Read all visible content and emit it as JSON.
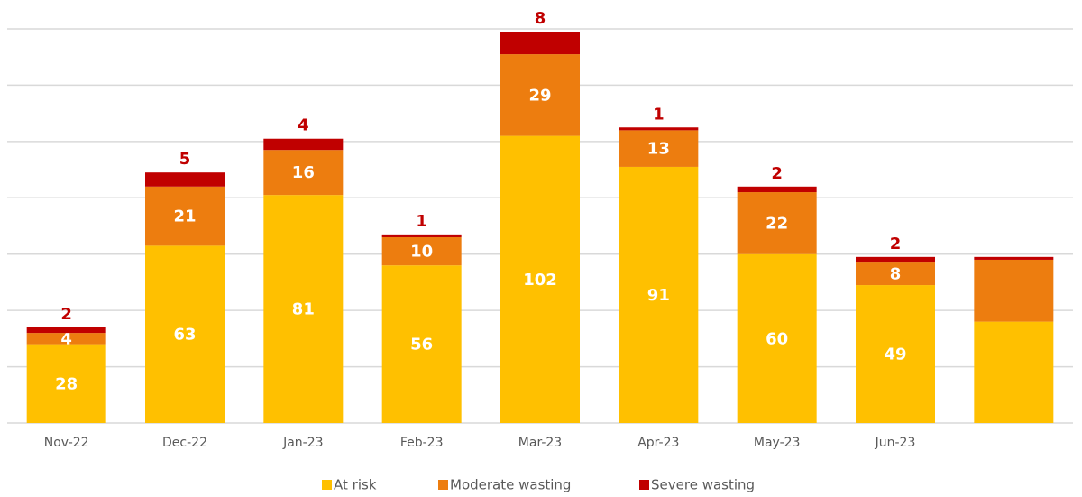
{
  "chart_data": {
    "type": "stacked_bar",
    "categories": [
      "Nov-22",
      "Dec-22",
      "Jan-23",
      "Feb-23",
      "Mar-23",
      "Apr-23",
      "May-23",
      "Jun-23",
      null
    ],
    "series": [
      {
        "name": "At risk",
        "color": "#FFC000",
        "values": [
          28,
          63,
          81,
          56,
          102,
          91,
          60,
          49,
          36
        ]
      },
      {
        "name": "Moderate wasting",
        "color": "#ED7D0F",
        "values": [
          4,
          21,
          16,
          10,
          29,
          13,
          22,
          8,
          22
        ]
      },
      {
        "name": "Severe wasting",
        "color": "#C00000",
        "values": [
          2,
          5,
          4,
          1,
          8,
          1,
          2,
          2,
          1
        ]
      }
    ],
    "ylim": [
      0,
      140
    ],
    "yticks": [
      0,
      20,
      40,
      60,
      80,
      100,
      120,
      140
    ],
    "grid": true,
    "legend": "bottom"
  }
}
